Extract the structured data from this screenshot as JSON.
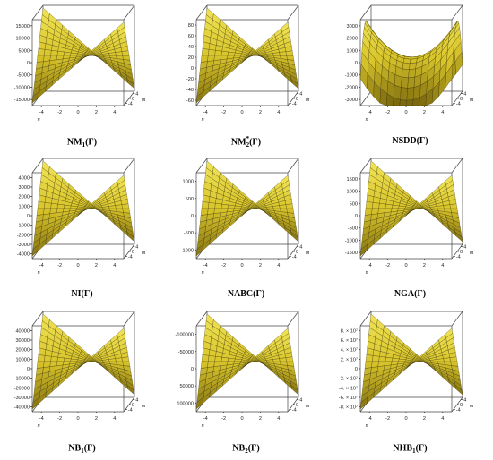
{
  "chart_data": [
    {
      "type": "surface",
      "caption": "NM₁(Γ)",
      "caption_base": "NM",
      "caption_sub": "1",
      "caption_sup": "",
      "caption_tail": "(Γ)",
      "shape": "hourglass",
      "zlim": [
        -17500,
        17500
      ],
      "z_ticks": [
        "15000",
        "10000",
        "5000",
        "0",
        "-5000",
        "-10000",
        "-15000"
      ],
      "x_ticks": [
        "-4",
        "-2",
        "0",
        "2",
        "4"
      ],
      "y_ticks": [
        "-4",
        "0",
        "4"
      ],
      "xlabel": "n",
      "ylabel": "m"
    },
    {
      "type": "surface",
      "caption": "NM*₂(Γ)",
      "caption_base": "NM",
      "caption_sub": "2",
      "caption_sup": "*",
      "caption_tail": "(Γ)",
      "shape": "hourglass",
      "zlim": [
        -65,
        85
      ],
      "z_ticks": [
        "80",
        "60",
        "40",
        "20",
        "0",
        "-20",
        "-40",
        "-60"
      ],
      "x_ticks": [
        "-4",
        "-2",
        "0",
        "2",
        "4"
      ],
      "y_ticks": [
        "-4",
        "0",
        "4"
      ],
      "xlabel": "n",
      "ylabel": "m"
    },
    {
      "type": "surface",
      "caption": "NSDD(Γ)",
      "caption_base": "NSDD",
      "caption_sub": "",
      "caption_sup": "",
      "caption_tail": "(Γ)",
      "shape": "saddle",
      "zlim": [
        -3600,
        3600
      ],
      "z_ticks": [
        "3000",
        "2000",
        "1000",
        "0",
        "-1000",
        "-2000",
        "-3000"
      ],
      "x_ticks": [
        "-4",
        "-2",
        "0",
        "2",
        "4"
      ],
      "y_ticks": [
        "-4",
        "0",
        "4"
      ],
      "xlabel": "n",
      "ylabel": "m"
    },
    {
      "type": "surface",
      "caption": "NI(Γ)",
      "caption_base": "NI",
      "caption_sub": "",
      "caption_sup": "",
      "caption_tail": "(Γ)",
      "shape": "hourglass",
      "zlim": [
        -4400,
        4400
      ],
      "z_ticks": [
        "4000",
        "3000",
        "2000",
        "1000",
        "0",
        "-1000",
        "-2000",
        "-3000",
        "-4000"
      ],
      "x_ticks": [
        "-4",
        "-2",
        "0",
        "2",
        "4"
      ],
      "y_ticks": [
        "-4",
        "0",
        "4"
      ],
      "xlabel": "n",
      "ylabel": "m"
    },
    {
      "type": "surface",
      "caption": "NABC(Γ)",
      "caption_base": "NABC",
      "caption_sub": "",
      "caption_sup": "",
      "caption_tail": "(Γ)",
      "shape": "hourglass",
      "zlim": [
        -1050,
        1050
      ],
      "z_ticks": [
        "1000",
        "500",
        "0",
        "-500",
        "-1000"
      ],
      "x_ticks": [
        "-4",
        "-2",
        "0",
        "2",
        "4"
      ],
      "y_ticks": [
        "-4",
        "0",
        "4"
      ],
      "xlabel": "n",
      "ylabel": "m"
    },
    {
      "type": "surface",
      "caption": "NGA(Γ)",
      "caption_base": "NGA",
      "caption_sub": "",
      "caption_sup": "",
      "caption_tail": "(Γ)",
      "shape": "hourglass",
      "zlim": [
        -1700,
        1700
      ],
      "z_ticks": [
        "1500",
        "1000",
        "500",
        "0",
        "-500",
        "-1000",
        "-1500"
      ],
      "x_ticks": [
        "-4",
        "-2",
        "0",
        "2",
        "4"
      ],
      "y_ticks": [
        "-4",
        "0",
        "4"
      ],
      "xlabel": "n",
      "ylabel": "m"
    },
    {
      "type": "surface",
      "caption": "NB₁(Γ)",
      "caption_base": "NB",
      "caption_sub": "1",
      "caption_sup": "",
      "caption_tail": "(Γ)",
      "shape": "hourglass",
      "zlim": [
        -44000,
        44000
      ],
      "z_ticks": [
        "40000",
        "30000",
        "20000",
        "10000",
        "0",
        "-10000",
        "-20000",
        "-30000",
        "-40000"
      ],
      "x_ticks": [
        "-4",
        "-2",
        "0",
        "2",
        "4"
      ],
      "y_ticks": [
        "-4",
        "0",
        "4"
      ],
      "xlabel": "n",
      "ylabel": "m"
    },
    {
      "type": "surface",
      "caption": "NB₂(Γ)",
      "caption_base": "NB",
      "caption_sub": "2",
      "caption_sup": "",
      "caption_tail": "(Γ)",
      "shape": "hourglass",
      "zlim": [
        -110000,
        110000
      ],
      "z_ticks": [
        "-100000",
        "-50000",
        "0",
        "50000",
        "100000"
      ],
      "x_ticks": [
        "-4",
        "-2",
        "0",
        "2",
        "4"
      ],
      "y_ticks": [
        "-4",
        "0",
        "4"
      ],
      "xlabel": "n",
      "ylabel": "m"
    },
    {
      "type": "surface",
      "caption": "NHB₁(Γ)",
      "caption_base": "NHB",
      "caption_sub": "1",
      "caption_sup": "",
      "caption_tail": "(Γ)",
      "shape": "hourglass",
      "zlim": [
        -85000000,
        85000000
      ],
      "z_ticks": [
        "8. × 10⁷",
        "6. × 10⁷",
        "4. × 10⁷",
        "2. × 10⁷",
        "0",
        "-2. × 10⁷",
        "-4. × 10⁷",
        "-6. × 10⁷",
        "-8. × 10⁷"
      ],
      "x_ticks": [
        "-4",
        "-2",
        "0",
        "2",
        "4"
      ],
      "y_ticks": [
        "-4",
        "0",
        "4"
      ],
      "xlabel": "n",
      "ylabel": "m"
    }
  ],
  "colors": {
    "surface_light": "#f2e65a",
    "surface_mid": "#d9c52b",
    "surface_dark": "#7c6a0e",
    "mesh": "#2a2400",
    "box": "#444444"
  }
}
